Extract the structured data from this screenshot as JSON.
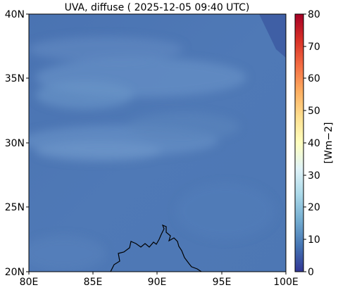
{
  "title": "UVA, diffuse ( 2025-12-05 09:40 UTC)",
  "map": {
    "lon_range": [
      80,
      100
    ],
    "lat_range": [
      20,
      40
    ],
    "x_ticks": [
      "80E",
      "85E",
      "90E",
      "95E",
      "100E"
    ],
    "y_ticks": [
      "40N",
      "35N",
      "30N",
      "25N",
      "20N"
    ],
    "field_color": "#4f78b3",
    "no_data_color": "#3f5fa5",
    "coastline_color": "#000000"
  },
  "colorbar": {
    "label": "[Wm−2]",
    "ticks": [
      "80",
      "70",
      "60",
      "50",
      "40",
      "30",
      "20",
      "10",
      "0"
    ],
    "range": [
      0,
      80
    ],
    "colormap": "RdYlBu_r",
    "stops": [
      "#313695",
      "#4575b4",
      "#74add1",
      "#abd9e9",
      "#e0f3f8",
      "#ffffbf",
      "#fee090",
      "#fdae61",
      "#f46d43",
      "#d73027",
      "#a50026"
    ]
  }
}
